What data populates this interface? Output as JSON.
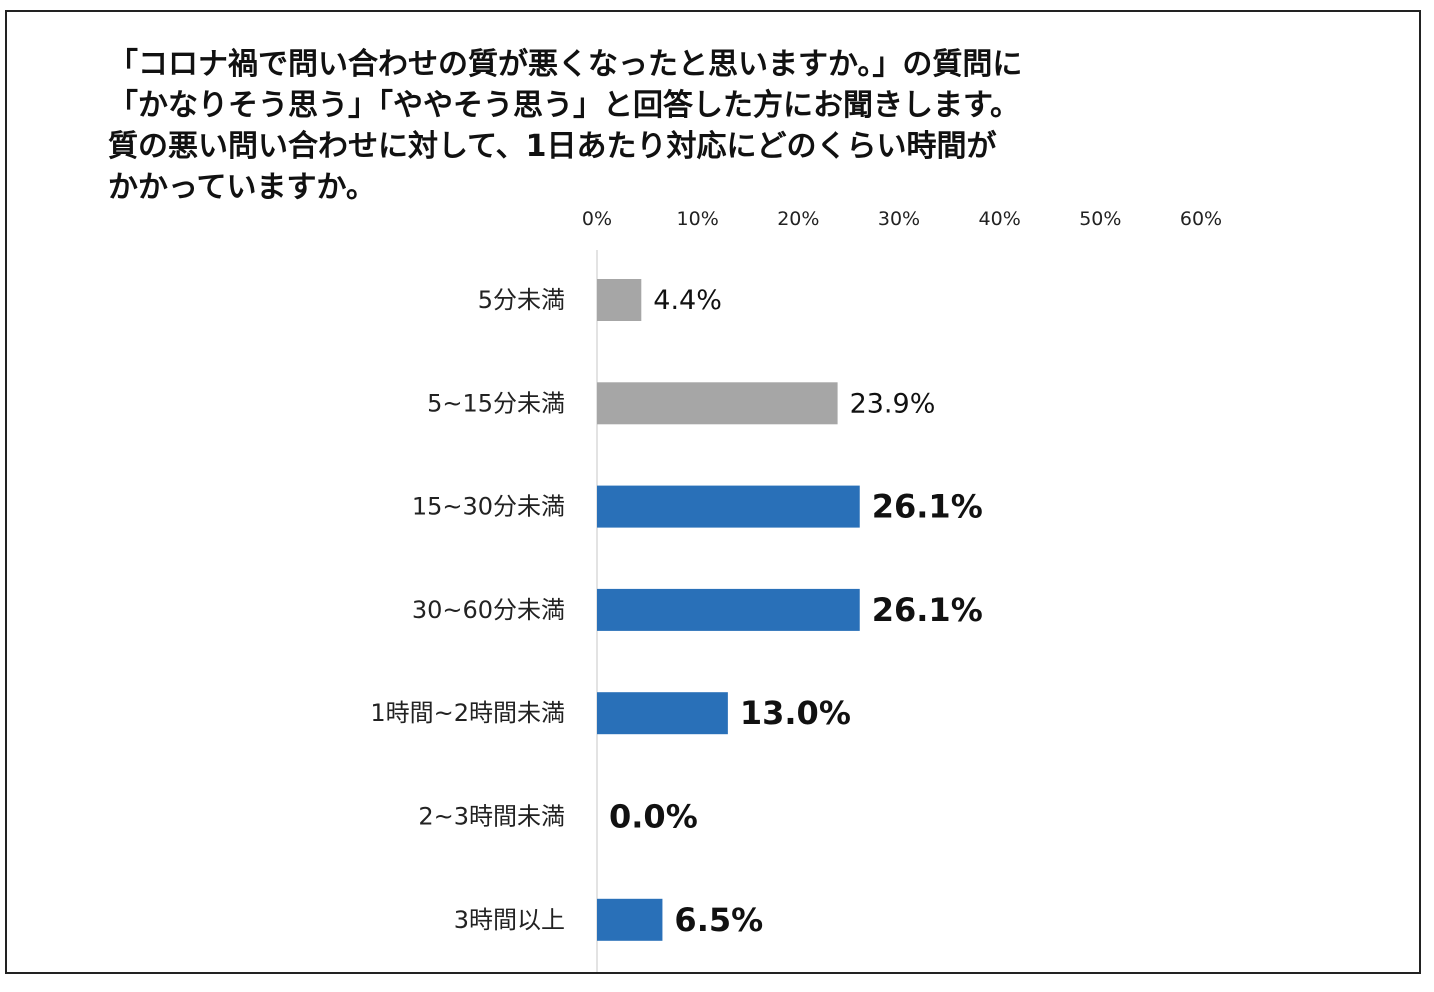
{
  "chart_data": {
    "type": "bar",
    "orientation": "horizontal",
    "title_lines": [
      "「コロナ禍で問い合わせの質が悪くなったと思いますか。」の質問に",
      "「かなりそう思う」「ややそう思う」と回答した方にお聞きします。",
      "質の悪い問い合わせに対して、1日あたり対応にどのくらい時間が",
      "かかっていますか。"
    ],
    "categories": [
      "5分未満",
      "5~15分未満",
      "15~30分未満",
      "30~60分未満",
      "1時間~2時間未満",
      "2~3時間未満",
      "3時間以上"
    ],
    "values": [
      4.4,
      23.9,
      26.1,
      26.1,
      13.0,
      0.0,
      6.5
    ],
    "value_labels": [
      "4.4%",
      "23.9%",
      "26.1%",
      "26.1%",
      "13.0%",
      "0.0%",
      "6.5%"
    ],
    "highlighted": [
      false,
      false,
      true,
      true,
      true,
      true,
      true
    ],
    "xlim": [
      0,
      60
    ],
    "x_ticks": [
      0,
      10,
      20,
      30,
      40,
      50,
      60
    ],
    "x_tick_labels": [
      "0%",
      "10%",
      "20%",
      "30%",
      "40%",
      "50%",
      "60%"
    ],
    "axis_position": "top",
    "grid": false,
    "colors": {
      "muted": "#a6a6a6",
      "highlight": "#2970b8",
      "axis": "#e3e3e3"
    }
  }
}
